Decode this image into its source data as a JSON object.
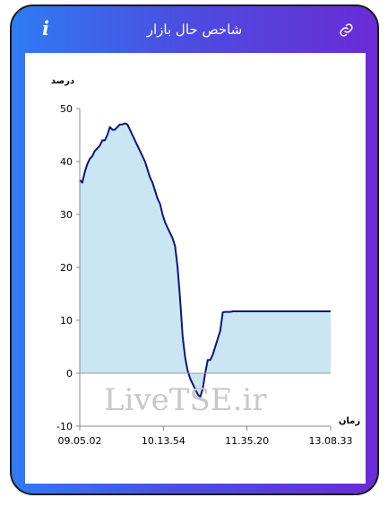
{
  "header": {
    "title": "شاخص حال بازار",
    "info_icon": "info-icon",
    "link_icon": "link-icon"
  },
  "colors": {
    "gradient_start": "#2f7bf6",
    "gradient_end": "#6a2bd6",
    "line": "#0b1580",
    "fill": "#c9e6f2"
  },
  "chart_data": {
    "type": "area",
    "ylabel": "درصد",
    "xlabel": "زمان",
    "ylim": [
      -10,
      50
    ],
    "yticks": [
      -10,
      0,
      10,
      20,
      30,
      40,
      50
    ],
    "xticks": [
      "09.05.02",
      "10.13.54",
      "11.35.20",
      "13.08.33"
    ],
    "watermark": "LiveTSE.ir",
    "series": [
      {
        "x": [
          0,
          0.01,
          0.02,
          0.03,
          0.04,
          0.05,
          0.06,
          0.07,
          0.08,
          0.09,
          0.1,
          0.11,
          0.12,
          0.13,
          0.14,
          0.15,
          0.16,
          0.17,
          0.18,
          0.19,
          0.2,
          0.21,
          0.22,
          0.23,
          0.24,
          0.25,
          0.26,
          0.27,
          0.28,
          0.29,
          0.3,
          0.31,
          0.32,
          0.33,
          0.34,
          0.35,
          0.36,
          0.37,
          0.38,
          0.39,
          0.4,
          0.41,
          0.42,
          0.43,
          0.44,
          0.45,
          0.46,
          0.47,
          0.48,
          0.49,
          0.5,
          0.51,
          0.52,
          0.53,
          0.54,
          0.55,
          0.56,
          0.57,
          0.58,
          0.59,
          0.6,
          0.61,
          0.62,
          0.63,
          0.64,
          0.65,
          0.66,
          0.67,
          0.68,
          0.69,
          0.7,
          0.71,
          0.72,
          0.73,
          0.74,
          0.75,
          0.76,
          0.77,
          0.78,
          0.79,
          0.8,
          0.81,
          0.82,
          0.83,
          0.84,
          0.85,
          0.86,
          0.87,
          0.88,
          0.89,
          0.9,
          0.92,
          0.94,
          0.96,
          0.98,
          1
        ],
        "y": [
          36.5,
          36,
          38,
          39.5,
          40.5,
          41,
          42,
          42.5,
          43,
          44,
          44,
          45,
          46.5,
          46,
          46,
          46.5,
          47,
          47,
          47.2,
          47,
          46,
          45,
          44,
          43,
          42,
          41,
          40,
          38.5,
          37,
          36,
          34.5,
          33,
          32,
          30,
          28.5,
          27.5,
          26.5,
          25.5,
          24,
          20,
          14,
          7,
          3,
          0.5,
          -1,
          -2,
          -3,
          -4,
          -4.5,
          -3,
          0,
          2.5,
          2.5,
          3.5,
          5,
          6.5,
          8,
          11.5,
          11.6,
          11.6,
          11.6,
          11.7,
          11.7,
          11.7,
          11.7,
          11.7,
          11.7,
          11.7,
          11.7,
          11.7,
          11.7,
          11.7,
          11.7,
          11.7,
          11.7,
          11.7,
          11.7,
          11.7,
          11.7,
          11.7,
          11.7,
          11.7,
          11.7,
          11.7,
          11.7,
          11.7,
          11.7,
          11.7,
          11.7,
          11.7,
          11.7,
          11.7,
          11.7,
          11.7,
          11.7,
          11.7
        ]
      }
    ]
  }
}
